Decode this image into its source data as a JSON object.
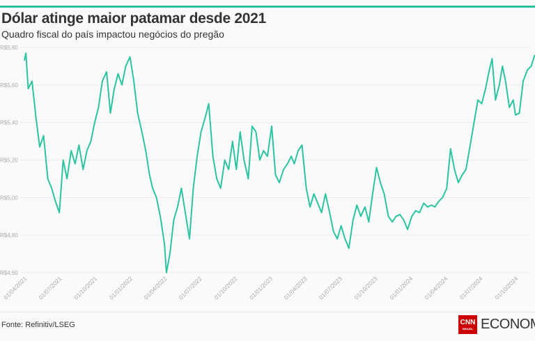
{
  "header": {
    "title": "Dólar atinge maior patamar desde 2021",
    "subtitle": "Quadro fiscal do país impactou negócios do pregão"
  },
  "footer": {
    "source": "Fonte: Refinitiv/LSEG",
    "logo_text": "CNN",
    "logo_sub": "BRASIL",
    "brand": "ECONOMIA"
  },
  "colors": {
    "line": "#2bc4a0",
    "accent": "#2bbf9b",
    "logo": "#cc0000"
  },
  "chart_data": {
    "type": "line",
    "title": "Dólar atinge maior patamar desde 2021",
    "xlabel": "",
    "ylabel": "",
    "ylim": [
      4.6,
      5.8
    ],
    "xlim": [
      "2021-04-01",
      "2024-11-20"
    ],
    "grid": true,
    "yticks": [
      {
        "v": 5.8,
        "label": "R$5,80"
      },
      {
        "v": 5.6,
        "label": "R$5,60"
      },
      {
        "v": 5.4,
        "label": "R$5,40"
      },
      {
        "v": 5.2,
        "label": "R$5,20"
      },
      {
        "v": 5.0,
        "label": "R$5,00"
      },
      {
        "v": 4.8,
        "label": "R$4,80"
      },
      {
        "v": 4.6,
        "label": "R$4,60"
      }
    ],
    "xticks": [
      {
        "d": "2021-04-01",
        "label": "01/04/2021"
      },
      {
        "d": "2021-07-01",
        "label": "01/07/2021"
      },
      {
        "d": "2021-10-01",
        "label": "01/10/2021"
      },
      {
        "d": "2022-01-01",
        "label": "01/01/2022"
      },
      {
        "d": "2022-04-01",
        "label": "01/04/2022"
      },
      {
        "d": "2022-07-01",
        "label": "01/07/2022"
      },
      {
        "d": "2022-10-01",
        "label": "01/10/2022"
      },
      {
        "d": "2023-01-01",
        "label": "01/01/2023"
      },
      {
        "d": "2023-04-01",
        "label": "01/04/2023"
      },
      {
        "d": "2023-07-01",
        "label": "01/07/2023"
      },
      {
        "d": "2023-10-01",
        "label": "01/10/2023"
      },
      {
        "d": "2024-01-01",
        "label": "01/01/2024"
      },
      {
        "d": "2024-04-01",
        "label": "01/04/2024"
      },
      {
        "d": "2024-07-01",
        "label": "01/07/2024"
      },
      {
        "d": "2024-10-01",
        "label": "01/10/2024"
      }
    ],
    "series": [
      {
        "points": [
          [
            "2021-04-01",
            5.73
          ],
          [
            "2021-04-05",
            5.77
          ],
          [
            "2021-04-11",
            5.58
          ],
          [
            "2021-04-21",
            5.62
          ],
          [
            "2021-05-01",
            5.43
          ],
          [
            "2021-05-11",
            5.27
          ],
          [
            "2021-05-21",
            5.33
          ],
          [
            "2021-06-01",
            5.1
          ],
          [
            "2021-06-11",
            5.05
          ],
          [
            "2021-06-21",
            4.98
          ],
          [
            "2021-07-01",
            4.92
          ],
          [
            "2021-07-11",
            5.2
          ],
          [
            "2021-07-21",
            5.1
          ],
          [
            "2021-08-01",
            5.25
          ],
          [
            "2021-08-11",
            5.18
          ],
          [
            "2021-08-21",
            5.28
          ],
          [
            "2021-09-01",
            5.15
          ],
          [
            "2021-09-11",
            5.25
          ],
          [
            "2021-09-21",
            5.3
          ],
          [
            "2021-10-01",
            5.4
          ],
          [
            "2021-10-11",
            5.48
          ],
          [
            "2021-10-21",
            5.62
          ],
          [
            "2021-11-01",
            5.67
          ],
          [
            "2021-11-11",
            5.45
          ],
          [
            "2021-11-21",
            5.58
          ],
          [
            "2021-12-01",
            5.66
          ],
          [
            "2021-12-11",
            5.6
          ],
          [
            "2021-12-21",
            5.7
          ],
          [
            "2022-01-01",
            5.75
          ],
          [
            "2022-01-11",
            5.62
          ],
          [
            "2022-01-21",
            5.45
          ],
          [
            "2022-02-01",
            5.35
          ],
          [
            "2022-02-11",
            5.25
          ],
          [
            "2022-02-21",
            5.12
          ],
          [
            "2022-03-01",
            5.05
          ],
          [
            "2022-03-11",
            5.0
          ],
          [
            "2022-03-21",
            4.9
          ],
          [
            "2022-04-01",
            4.75
          ],
          [
            "2022-04-06",
            4.6
          ],
          [
            "2022-04-15",
            4.7
          ],
          [
            "2022-04-25",
            4.88
          ],
          [
            "2022-05-05",
            4.95
          ],
          [
            "2022-05-15",
            5.05
          ],
          [
            "2022-05-25",
            4.92
          ],
          [
            "2022-06-05",
            4.78
          ],
          [
            "2022-06-15",
            5.05
          ],
          [
            "2022-06-25",
            5.22
          ],
          [
            "2022-07-05",
            5.35
          ],
          [
            "2022-07-15",
            5.42
          ],
          [
            "2022-07-25",
            5.5
          ],
          [
            "2022-08-05",
            5.22
          ],
          [
            "2022-08-15",
            5.1
          ],
          [
            "2022-08-25",
            5.05
          ],
          [
            "2022-09-05",
            5.2
          ],
          [
            "2022-09-15",
            5.15
          ],
          [
            "2022-09-25",
            5.3
          ],
          [
            "2022-10-05",
            5.15
          ],
          [
            "2022-10-15",
            5.35
          ],
          [
            "2022-10-25",
            5.2
          ],
          [
            "2022-11-05",
            5.1
          ],
          [
            "2022-11-15",
            5.38
          ],
          [
            "2022-11-25",
            5.35
          ],
          [
            "2022-12-05",
            5.2
          ],
          [
            "2022-12-15",
            5.25
          ],
          [
            "2022-12-25",
            5.22
          ],
          [
            "2023-01-05",
            5.38
          ],
          [
            "2023-01-15",
            5.12
          ],
          [
            "2023-01-25",
            5.08
          ],
          [
            "2023-02-05",
            5.15
          ],
          [
            "2023-02-15",
            5.18
          ],
          [
            "2023-02-25",
            5.22
          ],
          [
            "2023-03-05",
            5.18
          ],
          [
            "2023-03-15",
            5.25
          ],
          [
            "2023-03-25",
            5.28
          ],
          [
            "2023-04-05",
            5.05
          ],
          [
            "2023-04-15",
            4.95
          ],
          [
            "2023-04-25",
            5.02
          ],
          [
            "2023-05-05",
            4.97
          ],
          [
            "2023-05-15",
            4.92
          ],
          [
            "2023-05-25",
            5.02
          ],
          [
            "2023-06-05",
            4.92
          ],
          [
            "2023-06-15",
            4.82
          ],
          [
            "2023-06-25",
            4.78
          ],
          [
            "2023-07-05",
            4.85
          ],
          [
            "2023-07-15",
            4.78
          ],
          [
            "2023-07-25",
            4.73
          ],
          [
            "2023-08-05",
            4.88
          ],
          [
            "2023-08-15",
            4.96
          ],
          [
            "2023-08-25",
            4.9
          ],
          [
            "2023-09-05",
            4.95
          ],
          [
            "2023-09-15",
            4.87
          ],
          [
            "2023-09-25",
            5.02
          ],
          [
            "2023-10-05",
            5.16
          ],
          [
            "2023-10-15",
            5.08
          ],
          [
            "2023-10-25",
            5.02
          ],
          [
            "2023-11-05",
            4.9
          ],
          [
            "2023-11-15",
            4.87
          ],
          [
            "2023-11-25",
            4.9
          ],
          [
            "2023-12-05",
            4.91
          ],
          [
            "2023-12-15",
            4.88
          ],
          [
            "2023-12-25",
            4.83
          ],
          [
            "2024-01-05",
            4.9
          ],
          [
            "2024-01-15",
            4.93
          ],
          [
            "2024-01-25",
            4.92
          ],
          [
            "2024-02-05",
            4.97
          ],
          [
            "2024-02-15",
            4.95
          ],
          [
            "2024-02-25",
            4.96
          ],
          [
            "2024-03-05",
            4.95
          ],
          [
            "2024-03-15",
            4.98
          ],
          [
            "2024-03-25",
            5.0
          ],
          [
            "2024-04-05",
            5.05
          ],
          [
            "2024-04-15",
            5.26
          ],
          [
            "2024-04-25",
            5.15
          ],
          [
            "2024-05-05",
            5.08
          ],
          [
            "2024-05-15",
            5.12
          ],
          [
            "2024-05-25",
            5.15
          ],
          [
            "2024-06-05",
            5.28
          ],
          [
            "2024-06-15",
            5.4
          ],
          [
            "2024-06-25",
            5.52
          ],
          [
            "2024-07-05",
            5.5
          ],
          [
            "2024-07-15",
            5.58
          ],
          [
            "2024-07-25",
            5.68
          ],
          [
            "2024-08-01",
            5.74
          ],
          [
            "2024-08-10",
            5.52
          ],
          [
            "2024-08-20",
            5.6
          ],
          [
            "2024-08-28",
            5.7
          ],
          [
            "2024-09-05",
            5.62
          ],
          [
            "2024-09-15",
            5.48
          ],
          [
            "2024-09-25",
            5.52
          ],
          [
            "2024-10-01",
            5.44
          ],
          [
            "2024-10-11",
            5.45
          ],
          [
            "2024-10-21",
            5.62
          ],
          [
            "2024-11-01",
            5.68
          ],
          [
            "2024-11-11",
            5.7
          ],
          [
            "2024-11-20",
            5.76
          ]
        ]
      }
    ]
  }
}
